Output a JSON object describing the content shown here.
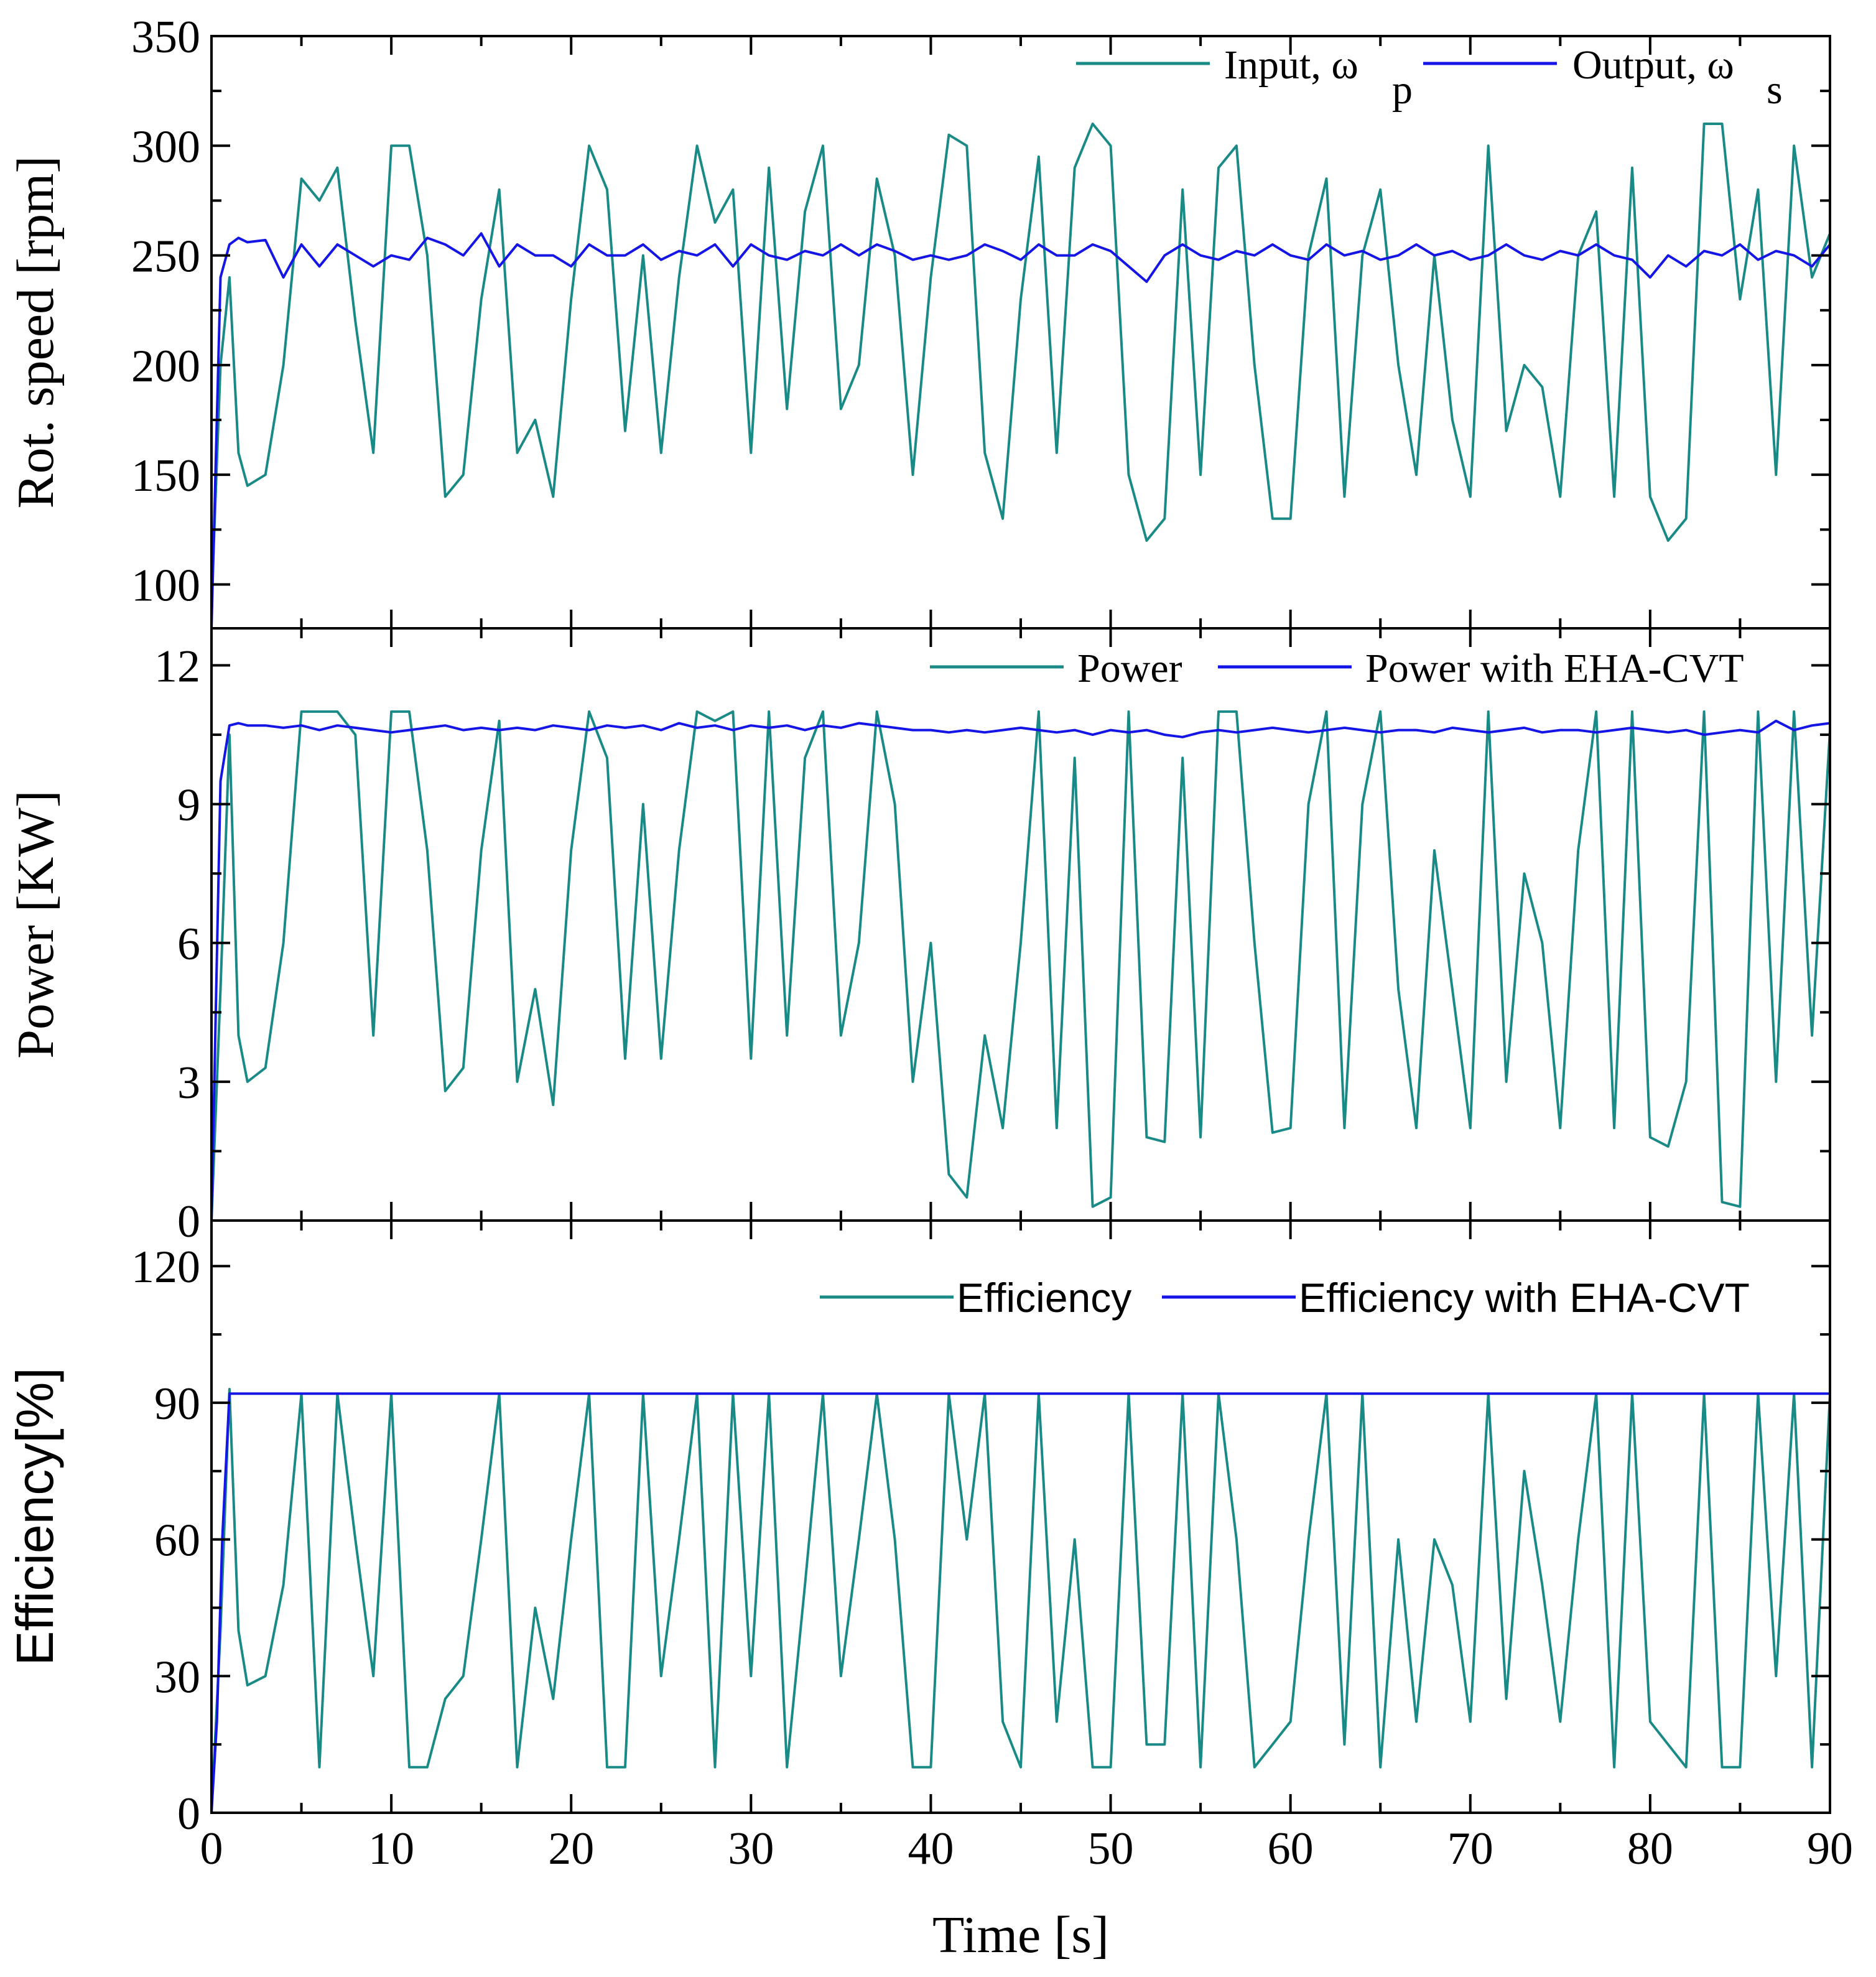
{
  "chart_data": [
    {
      "type": "line",
      "panel": "top",
      "ylabel": "Rot. speed [rpm]",
      "ylim": [
        80,
        350
      ],
      "yticks": [
        100,
        150,
        200,
        250,
        300,
        350
      ],
      "xlim": [
        0,
        90
      ],
      "legend_position": "top-right",
      "series": [
        {
          "name": "Input, ω_p",
          "legend_main": "Input, ω",
          "legend_sub": "p",
          "color": "#1a8a86",
          "x": [
            0,
            0.5,
            1,
            1.5,
            2,
            3,
            4,
            5,
            6,
            7,
            8,
            9,
            10,
            11,
            12,
            13,
            14,
            15,
            16,
            17,
            18,
            19,
            20,
            21,
            22,
            23,
            24,
            25,
            26,
            27,
            28,
            29,
            30,
            31,
            32,
            33,
            34,
            35,
            36,
            37,
            38,
            39,
            40,
            41,
            42,
            43,
            44,
            45,
            46,
            47,
            48,
            49,
            50,
            51,
            52,
            53,
            54,
            55,
            56,
            57,
            58,
            59,
            60,
            61,
            62,
            63,
            64,
            65,
            66,
            67,
            68,
            69,
            70,
            71,
            72,
            73,
            74,
            75,
            76,
            77,
            78,
            79,
            80,
            81,
            82,
            83,
            84,
            85,
            86,
            87,
            88,
            89,
            90
          ],
          "values": [
            90,
            200,
            240,
            160,
            145,
            150,
            200,
            285,
            275,
            290,
            220,
            160,
            300,
            300,
            250,
            140,
            150,
            230,
            280,
            160,
            175,
            140,
            230,
            300,
            280,
            170,
            250,
            160,
            240,
            300,
            265,
            280,
            160,
            290,
            180,
            270,
            300,
            180,
            200,
            285,
            250,
            150,
            240,
            305,
            300,
            160,
            130,
            230,
            295,
            160,
            290,
            310,
            300,
            150,
            120,
            130,
            280,
            150,
            290,
            300,
            200,
            130,
            130,
            250,
            285,
            140,
            250,
            280,
            200,
            150,
            250,
            175,
            140,
            300,
            170,
            200,
            190,
            140,
            250,
            270,
            140,
            290,
            140,
            120,
            130,
            310,
            310,
            230,
            280,
            150,
            300,
            240,
            260
          ]
        },
        {
          "name": "Output, ω_s",
          "legend_main": "Output, ω",
          "legend_sub": "s",
          "color": "#1515e6",
          "x": [
            0,
            0.5,
            1,
            1.5,
            2,
            3,
            4,
            5,
            6,
            7,
            8,
            9,
            10,
            11,
            12,
            13,
            14,
            15,
            16,
            17,
            18,
            19,
            20,
            21,
            22,
            23,
            24,
            25,
            26,
            27,
            28,
            29,
            30,
            31,
            32,
            33,
            34,
            35,
            36,
            37,
            38,
            39,
            40,
            41,
            42,
            43,
            44,
            45,
            46,
            47,
            48,
            49,
            50,
            51,
            52,
            53,
            54,
            55,
            56,
            57,
            58,
            59,
            60,
            61,
            62,
            63,
            64,
            65,
            66,
            67,
            68,
            69,
            70,
            71,
            72,
            73,
            74,
            75,
            76,
            77,
            78,
            79,
            80,
            81,
            82,
            83,
            84,
            85,
            86,
            87,
            88,
            89,
            90
          ],
          "values": [
            80,
            240,
            255,
            258,
            256,
            257,
            240,
            255,
            245,
            255,
            250,
            245,
            250,
            248,
            258,
            255,
            250,
            260,
            245,
            255,
            250,
            250,
            245,
            255,
            250,
            250,
            255,
            248,
            252,
            250,
            255,
            245,
            255,
            250,
            248,
            252,
            250,
            255,
            250,
            255,
            252,
            248,
            250,
            248,
            250,
            255,
            252,
            248,
            255,
            250,
            250,
            255,
            252,
            245,
            238,
            250,
            255,
            250,
            248,
            252,
            250,
            255,
            250,
            248,
            255,
            250,
            252,
            248,
            250,
            255,
            250,
            252,
            248,
            250,
            255,
            250,
            248,
            252,
            250,
            255,
            250,
            248,
            240,
            250,
            245,
            252,
            250,
            255,
            248,
            252,
            250,
            245,
            255
          ]
        }
      ]
    },
    {
      "type": "line",
      "panel": "middle",
      "ylabel": "Power [KW]",
      "ylim": [
        0,
        12.8
      ],
      "yticks": [
        0,
        3,
        6,
        9,
        12
      ],
      "xlim": [
        0,
        90
      ],
      "legend_position": "top-right",
      "series": [
        {
          "name": "Power",
          "color": "#1a8a86",
          "x": [
            0,
            0.5,
            1,
            1.5,
            2,
            3,
            4,
            5,
            6,
            7,
            8,
            9,
            10,
            11,
            12,
            13,
            14,
            15,
            16,
            17,
            18,
            19,
            20,
            21,
            22,
            23,
            24,
            25,
            26,
            27,
            28,
            29,
            30,
            31,
            32,
            33,
            34,
            35,
            36,
            37,
            38,
            39,
            40,
            41,
            42,
            43,
            44,
            45,
            46,
            47,
            48,
            49,
            50,
            51,
            52,
            53,
            54,
            55,
            56,
            57,
            58,
            59,
            60,
            61,
            62,
            63,
            64,
            65,
            66,
            67,
            68,
            69,
            70,
            71,
            72,
            73,
            74,
            75,
            76,
            77,
            78,
            79,
            80,
            81,
            82,
            83,
            84,
            85,
            86,
            87,
            88,
            89,
            90
          ],
          "values": [
            0,
            5,
            10.5,
            4,
            3,
            3.3,
            6,
            11,
            11,
            11,
            10.5,
            4,
            11,
            11,
            8,
            2.8,
            3.3,
            8,
            10.8,
            3,
            5,
            2.5,
            8,
            11,
            10,
            3.5,
            9,
            3.5,
            8,
            11,
            10.8,
            11,
            3.5,
            11,
            4,
            10,
            11,
            4,
            6,
            11,
            9,
            3,
            6,
            1,
            0.5,
            4,
            2,
            6,
            11,
            2,
            10,
            0.3,
            0.5,
            11,
            1.8,
            1.7,
            10,
            1.8,
            11,
            11,
            6,
            1.9,
            2,
            9,
            11,
            2,
            9,
            11,
            5,
            2,
            8,
            5,
            2,
            11,
            3,
            7.5,
            6,
            2,
            8,
            11,
            2,
            11,
            1.8,
            1.6,
            3,
            11,
            0.4,
            0.3,
            11,
            3,
            11,
            4,
            10.6
          ]
        },
        {
          "name": "Power with EHA-CVT",
          "color": "#1515e6",
          "x": [
            0,
            0.5,
            1,
            1.5,
            2,
            3,
            4,
            5,
            6,
            7,
            8,
            9,
            10,
            11,
            12,
            13,
            14,
            15,
            16,
            17,
            18,
            19,
            20,
            21,
            22,
            23,
            24,
            25,
            26,
            27,
            28,
            29,
            30,
            31,
            32,
            33,
            34,
            35,
            36,
            37,
            38,
            39,
            40,
            41,
            42,
            43,
            44,
            45,
            46,
            47,
            48,
            49,
            50,
            51,
            52,
            53,
            54,
            55,
            56,
            57,
            58,
            59,
            60,
            61,
            62,
            63,
            64,
            65,
            66,
            67,
            68,
            69,
            70,
            71,
            72,
            73,
            74,
            75,
            76,
            77,
            78,
            79,
            80,
            81,
            82,
            83,
            84,
            85,
            86,
            87,
            88,
            89,
            90
          ],
          "values": [
            0,
            9.5,
            10.7,
            10.75,
            10.7,
            10.7,
            10.65,
            10.7,
            10.6,
            10.7,
            10.65,
            10.6,
            10.55,
            10.6,
            10.65,
            10.7,
            10.6,
            10.65,
            10.6,
            10.65,
            10.6,
            10.7,
            10.65,
            10.6,
            10.7,
            10.65,
            10.7,
            10.6,
            10.75,
            10.65,
            10.7,
            10.6,
            10.7,
            10.65,
            10.7,
            10.6,
            10.7,
            10.65,
            10.75,
            10.7,
            10.65,
            10.6,
            10.6,
            10.55,
            10.6,
            10.55,
            10.6,
            10.65,
            10.6,
            10.55,
            10.6,
            10.5,
            10.6,
            10.55,
            10.6,
            10.5,
            10.45,
            10.55,
            10.6,
            10.55,
            10.6,
            10.65,
            10.6,
            10.55,
            10.6,
            10.65,
            10.6,
            10.55,
            10.6,
            10.6,
            10.55,
            10.65,
            10.6,
            10.55,
            10.6,
            10.65,
            10.55,
            10.6,
            10.6,
            10.55,
            10.6,
            10.65,
            10.6,
            10.55,
            10.6,
            10.5,
            10.55,
            10.6,
            10.55,
            10.8,
            10.6,
            10.7,
            10.75
          ]
        }
      ]
    },
    {
      "type": "line",
      "panel": "bottom",
      "ylabel": "Efficiency[%]",
      "xlabel": "Time [s]",
      "ylim": [
        0,
        130
      ],
      "yticks": [
        0,
        30,
        60,
        90,
        120
      ],
      "xlim": [
        0,
        90
      ],
      "xticks": [
        0,
        10,
        20,
        30,
        40,
        50,
        60,
        70,
        80,
        90
      ],
      "legend_position": "top-right",
      "series": [
        {
          "name": "Efficiency",
          "color": "#1a8a86",
          "x": [
            0,
            0.5,
            1,
            1.5,
            2,
            3,
            4,
            5,
            6,
            7,
            8,
            9,
            10,
            11,
            12,
            13,
            14,
            15,
            16,
            17,
            18,
            19,
            20,
            21,
            22,
            23,
            24,
            25,
            26,
            27,
            28,
            29,
            30,
            31,
            32,
            33,
            34,
            35,
            36,
            37,
            38,
            39,
            40,
            41,
            42,
            43,
            44,
            45,
            46,
            47,
            48,
            49,
            50,
            51,
            52,
            53,
            54,
            55,
            56,
            57,
            58,
            59,
            60,
            61,
            62,
            63,
            64,
            65,
            66,
            67,
            68,
            69,
            70,
            71,
            72,
            73,
            74,
            75,
            76,
            77,
            78,
            79,
            80,
            81,
            82,
            83,
            84,
            85,
            86,
            87,
            88,
            89,
            90
          ],
          "values": [
            0,
            40,
            93,
            40,
            28,
            30,
            50,
            92,
            10,
            92,
            60,
            30,
            92,
            10,
            10,
            25,
            30,
            60,
            92,
            10,
            45,
            25,
            60,
            92,
            10,
            10,
            92,
            30,
            60,
            92,
            10,
            92,
            30,
            92,
            10,
            50,
            92,
            30,
            60,
            92,
            60,
            10,
            10,
            92,
            60,
            92,
            20,
            10,
            92,
            20,
            60,
            10,
            10,
            92,
            15,
            15,
            92,
            10,
            92,
            60,
            10,
            15,
            20,
            60,
            92,
            15,
            92,
            10,
            60,
            20,
            60,
            50,
            20,
            92,
            25,
            75,
            50,
            20,
            60,
            92,
            10,
            92,
            20,
            15,
            10,
            92,
            10,
            10,
            92,
            30,
            92,
            10,
            92
          ]
        },
        {
          "name": "Efficiency with EHA-CVT",
          "color": "#1515e6",
          "x": [
            0,
            0.3,
            0.6,
            1,
            90
          ],
          "values": [
            0,
            20,
            60,
            92,
            92
          ]
        }
      ]
    }
  ]
}
